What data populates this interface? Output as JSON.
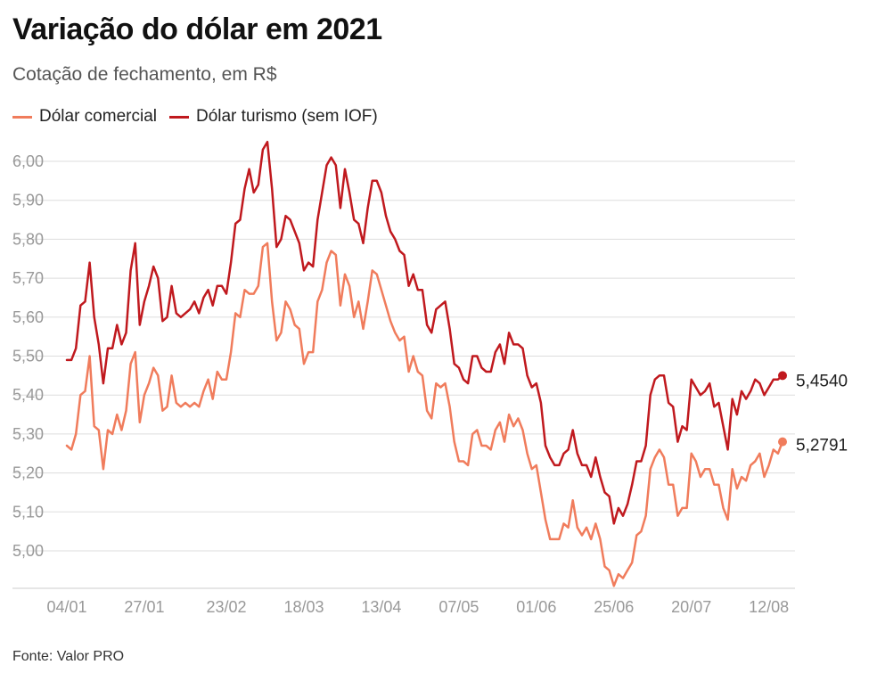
{
  "title": "Variação do dólar em 2021",
  "subtitle": "Cotação de fechamento, em R$",
  "source": "Fonte: Valor PRO",
  "colors": {
    "comercial": "#f07c5c",
    "turismo": "#c0191e",
    "grid": "#dddddd",
    "tick": "#999999"
  },
  "chart_data": {
    "type": "line",
    "title": "Variação do dólar em 2021",
    "subtitle": "Cotação de fechamento, em R$",
    "xlabel": "",
    "ylabel": "",
    "ylim": [
      4.9,
      6.06
    ],
    "yticks": [
      5.0,
      5.1,
      5.2,
      5.3,
      5.4,
      5.5,
      5.6,
      5.7,
      5.8,
      5.9,
      6.0
    ],
    "ytick_labels": [
      "5,00",
      "5,10",
      "5,20",
      "5,30",
      "5,40",
      "5,50",
      "5,60",
      "5,70",
      "5,80",
      "5,90",
      "6,00"
    ],
    "xticks": [
      {
        "index": 0,
        "label": "04/01"
      },
      {
        "index": 17,
        "label": "27/01"
      },
      {
        "index": 35,
        "label": "23/02"
      },
      {
        "index": 52,
        "label": "18/03"
      },
      {
        "index": 69,
        "label": "13/04"
      },
      {
        "index": 86,
        "label": "07/05"
      },
      {
        "index": 103,
        "label": "01/06"
      },
      {
        "index": 120,
        "label": "25/06"
      },
      {
        "index": 137,
        "label": "20/07"
      },
      {
        "index": 154,
        "label": "12/08"
      }
    ],
    "legend": "top-left",
    "series": [
      {
        "name": "Dólar comercial",
        "color": "#f07c5c",
        "final_label": "5,2791",
        "values": [
          5.27,
          5.26,
          5.3,
          5.4,
          5.41,
          5.5,
          5.32,
          5.31,
          5.21,
          5.31,
          5.3,
          5.35,
          5.31,
          5.36,
          5.48,
          5.51,
          5.33,
          5.4,
          5.43,
          5.47,
          5.45,
          5.36,
          5.37,
          5.45,
          5.38,
          5.37,
          5.38,
          5.37,
          5.38,
          5.37,
          5.41,
          5.44,
          5.39,
          5.46,
          5.44,
          5.44,
          5.51,
          5.61,
          5.6,
          5.67,
          5.66,
          5.66,
          5.68,
          5.78,
          5.79,
          5.64,
          5.54,
          5.56,
          5.64,
          5.62,
          5.58,
          5.57,
          5.48,
          5.51,
          5.51,
          5.64,
          5.67,
          5.74,
          5.77,
          5.76,
          5.63,
          5.71,
          5.68,
          5.6,
          5.64,
          5.57,
          5.64,
          5.72,
          5.71,
          5.67,
          5.63,
          5.59,
          5.56,
          5.54,
          5.55,
          5.46,
          5.5,
          5.46,
          5.45,
          5.36,
          5.34,
          5.43,
          5.42,
          5.43,
          5.37,
          5.28,
          5.23,
          5.23,
          5.22,
          5.3,
          5.31,
          5.27,
          5.27,
          5.26,
          5.31,
          5.33,
          5.28,
          5.35,
          5.32,
          5.34,
          5.31,
          5.25,
          5.21,
          5.22,
          5.15,
          5.08,
          5.03,
          5.03,
          5.03,
          5.07,
          5.06,
          5.13,
          5.06,
          5.04,
          5.06,
          5.03,
          5.07,
          5.03,
          4.96,
          4.95,
          4.91,
          4.94,
          4.93,
          4.95,
          4.97,
          5.04,
          5.05,
          5.09,
          5.21,
          5.24,
          5.26,
          5.24,
          5.17,
          5.17,
          5.09,
          5.11,
          5.11,
          5.25,
          5.23,
          5.19,
          5.21,
          5.21,
          5.17,
          5.17,
          5.11,
          5.08,
          5.21,
          5.16,
          5.19,
          5.18,
          5.22,
          5.23,
          5.25,
          5.19,
          5.22,
          5.26,
          5.25,
          5.28
        ]
      },
      {
        "name": "Dólar turismo (sem IOF)",
        "color": "#c0191e",
        "final_label": "5,4540",
        "values": [
          5.49,
          5.49,
          5.52,
          5.63,
          5.64,
          5.74,
          5.6,
          5.53,
          5.43,
          5.52,
          5.52,
          5.58,
          5.53,
          5.56,
          5.72,
          5.79,
          5.58,
          5.64,
          5.68,
          5.73,
          5.7,
          5.59,
          5.6,
          5.68,
          5.61,
          5.6,
          5.61,
          5.62,
          5.64,
          5.61,
          5.65,
          5.67,
          5.63,
          5.68,
          5.68,
          5.66,
          5.74,
          5.84,
          5.85,
          5.93,
          5.98,
          5.92,
          5.94,
          6.03,
          6.05,
          5.93,
          5.78,
          5.8,
          5.86,
          5.85,
          5.82,
          5.79,
          5.72,
          5.74,
          5.73,
          5.85,
          5.92,
          5.99,
          6.01,
          5.99,
          5.88,
          5.98,
          5.92,
          5.85,
          5.84,
          5.79,
          5.88,
          5.95,
          5.95,
          5.92,
          5.86,
          5.82,
          5.8,
          5.77,
          5.76,
          5.68,
          5.71,
          5.67,
          5.67,
          5.58,
          5.56,
          5.62,
          5.63,
          5.64,
          5.57,
          5.48,
          5.47,
          5.44,
          5.43,
          5.5,
          5.5,
          5.47,
          5.46,
          5.46,
          5.51,
          5.53,
          5.48,
          5.56,
          5.53,
          5.53,
          5.52,
          5.45,
          5.42,
          5.43,
          5.38,
          5.27,
          5.24,
          5.22,
          5.22,
          5.25,
          5.26,
          5.31,
          5.25,
          5.22,
          5.22,
          5.19,
          5.24,
          5.19,
          5.15,
          5.14,
          5.07,
          5.11,
          5.09,
          5.12,
          5.17,
          5.23,
          5.23,
          5.27,
          5.4,
          5.44,
          5.45,
          5.45,
          5.38,
          5.37,
          5.28,
          5.32,
          5.31,
          5.44,
          5.42,
          5.4,
          5.41,
          5.43,
          5.37,
          5.38,
          5.32,
          5.26,
          5.39,
          5.35,
          5.41,
          5.39,
          5.41,
          5.44,
          5.43,
          5.4,
          5.42,
          5.44,
          5.44,
          5.45
        ]
      }
    ]
  }
}
